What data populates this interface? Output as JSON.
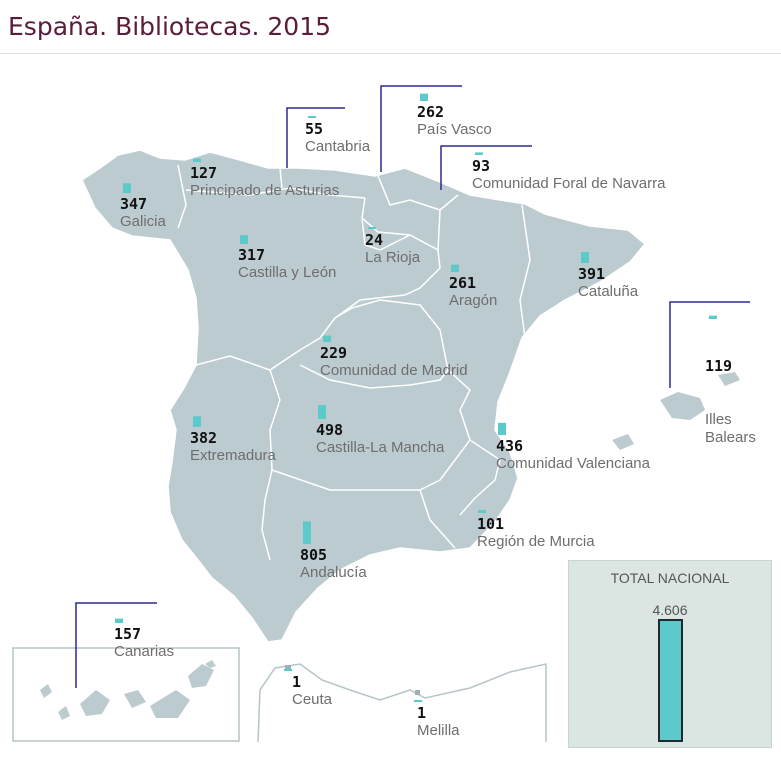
{
  "title": "España. Bibliotecas. 2015",
  "colors": {
    "land": "#bccbd0",
    "border": "#ffffff",
    "bar": "#5ccaca",
    "leader": "#2d2a8a",
    "title": "#5b1c3a"
  },
  "regions": [
    {
      "id": "galicia",
      "name": "Galicia",
      "value": "347"
    },
    {
      "id": "asturias",
      "name": "Principado de Asturias",
      "value": "127"
    },
    {
      "id": "cantabria",
      "name": "Cantabria",
      "value": "55"
    },
    {
      "id": "pais-vasco",
      "name": "País Vasco",
      "value": "262"
    },
    {
      "id": "navarra",
      "name": "Comunidad Foral de Navarra",
      "value": "93"
    },
    {
      "id": "la-rioja",
      "name": "La Rioja",
      "value": "24"
    },
    {
      "id": "castilla-leon",
      "name": "Castilla y León",
      "value": "317"
    },
    {
      "id": "aragon",
      "name": "Aragón",
      "value": "261"
    },
    {
      "id": "cataluna",
      "name": "Cataluña",
      "value": "391"
    },
    {
      "id": "baleares",
      "name": "Illes\nBalears",
      "value": "119"
    },
    {
      "id": "madrid",
      "name": "Comunidad de Madrid",
      "value": "229"
    },
    {
      "id": "extremadura",
      "name": "Extremadura",
      "value": "382"
    },
    {
      "id": "castilla-la-mancha",
      "name": "Castilla-La Mancha",
      "value": "498"
    },
    {
      "id": "valenciana",
      "name": "Comunidad Valenciana",
      "value": "436"
    },
    {
      "id": "murcia",
      "name": "Región de Murcia",
      "value": "101"
    },
    {
      "id": "andalucia",
      "name": "Andalucía",
      "value": "805"
    },
    {
      "id": "canarias",
      "name": "Canarias",
      "value": "157"
    },
    {
      "id": "ceuta",
      "name": "Ceuta",
      "value": "1"
    },
    {
      "id": "melilla",
      "name": "Melilla",
      "value": "1"
    }
  ],
  "total": {
    "label": "TOTAL NACIONAL",
    "value": "4.606"
  }
}
